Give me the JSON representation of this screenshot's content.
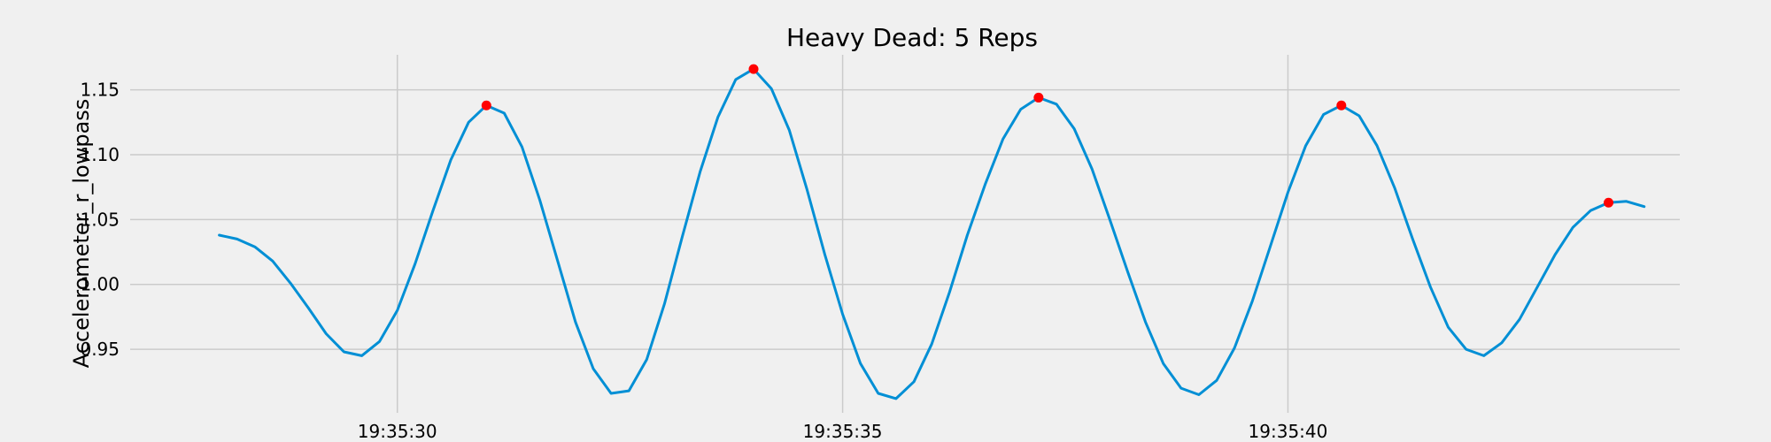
{
  "chart_data": {
    "type": "line",
    "title": "Heavy Dead: 5 Reps",
    "xlabel": "",
    "ylabel": "Accelerometer_r_lowpass",
    "x_unit": "time",
    "xlim": [
      "19:35:27.0",
      "19:35:44.4"
    ],
    "ylim": [
      0.901,
      1.177
    ],
    "grid": true,
    "x_ticks": [
      {
        "t": "19:35:30",
        "label": "19:35:30"
      },
      {
        "t": "19:35:35",
        "label": "19:35:35"
      },
      {
        "t": "19:35:40",
        "label": "19:35:40"
      }
    ],
    "y_ticks": [
      0.95,
      1.0,
      1.05,
      1.1,
      1.15
    ],
    "y_tick_labels": [
      "0.95",
      "1.00",
      "1.05",
      "1.10",
      "1.15"
    ],
    "series": [
      {
        "color": "#008fd5",
        "points": [
          [
            "19:35:28.0",
            1.038
          ],
          [
            "19:35:28.2",
            1.035
          ],
          [
            "19:35:28.4",
            1.029
          ],
          [
            "19:35:28.6",
            1.018
          ],
          [
            "19:35:28.8",
            1.001
          ],
          [
            "19:35:29.0",
            0.982
          ],
          [
            "19:35:29.2",
            0.962
          ],
          [
            "19:35:29.4",
            0.948
          ],
          [
            "19:35:29.6",
            0.945
          ],
          [
            "19:35:29.8",
            0.956
          ],
          [
            "19:35:30.0",
            0.98
          ],
          [
            "19:35:30.2",
            1.016
          ],
          [
            "19:35:30.4",
            1.057
          ],
          [
            "19:35:30.6",
            1.096
          ],
          [
            "19:35:30.8",
            1.125
          ],
          [
            "19:35:31.0",
            1.138
          ],
          [
            "19:35:31.2",
            1.132
          ],
          [
            "19:35:31.4",
            1.106
          ],
          [
            "19:35:31.6",
            1.065
          ],
          [
            "19:35:31.8",
            1.018
          ],
          [
            "19:35:32.0",
            0.971
          ],
          [
            "19:35:32.2",
            0.935
          ],
          [
            "19:35:32.4",
            0.916
          ],
          [
            "19:35:32.6",
            0.918
          ],
          [
            "19:35:32.8",
            0.942
          ],
          [
            "19:35:33.0",
            0.985
          ],
          [
            "19:35:33.2",
            1.037
          ],
          [
            "19:35:33.4",
            1.087
          ],
          [
            "19:35:33.6",
            1.129
          ],
          [
            "19:35:33.8",
            1.158
          ],
          [
            "19:35:34.0",
            1.166
          ],
          [
            "19:35:34.2",
            1.151
          ],
          [
            "19:35:34.4",
            1.119
          ],
          [
            "19:35:34.6",
            1.073
          ],
          [
            "19:35:34.8",
            1.023
          ],
          [
            "19:35:35.0",
            0.977
          ],
          [
            "19:35:35.2",
            0.939
          ],
          [
            "19:35:35.4",
            0.916
          ],
          [
            "19:35:35.6",
            0.912
          ],
          [
            "19:35:35.8",
            0.925
          ],
          [
            "19:35:36.0",
            0.954
          ],
          [
            "19:35:36.2",
            0.994
          ],
          [
            "19:35:36.4",
            1.038
          ],
          [
            "19:35:36.6",
            1.077
          ],
          [
            "19:35:36.8",
            1.112
          ],
          [
            "19:35:37.0",
            1.135
          ],
          [
            "19:35:37.2",
            1.144
          ],
          [
            "19:35:37.4",
            1.139
          ],
          [
            "19:35:37.6",
            1.12
          ],
          [
            "19:35:37.8",
            1.089
          ],
          [
            "19:35:38.0",
            1.05
          ],
          [
            "19:35:38.2",
            1.01
          ],
          [
            "19:35:38.4",
            0.971
          ],
          [
            "19:35:38.6",
            0.939
          ],
          [
            "19:35:38.8",
            0.92
          ],
          [
            "19:35:39.0",
            0.915
          ],
          [
            "19:35:39.2",
            0.926
          ],
          [
            "19:35:39.4",
            0.951
          ],
          [
            "19:35:39.6",
            0.987
          ],
          [
            "19:35:39.8",
            1.029
          ],
          [
            "19:35:40.0",
            1.071
          ],
          [
            "19:35:40.2",
            1.107
          ],
          [
            "19:35:40.4",
            1.131
          ],
          [
            "19:35:40.6",
            1.138
          ],
          [
            "19:35:40.8",
            1.13
          ],
          [
            "19:35:41.0",
            1.107
          ],
          [
            "19:35:41.2",
            1.074
          ],
          [
            "19:35:41.4",
            1.035
          ],
          [
            "19:35:41.6",
            0.998
          ],
          [
            "19:35:41.8",
            0.967
          ],
          [
            "19:35:42.0",
            0.95
          ],
          [
            "19:35:42.2",
            0.945
          ],
          [
            "19:35:42.4",
            0.955
          ],
          [
            "19:35:42.6",
            0.973
          ],
          [
            "19:35:42.8",
            0.998
          ],
          [
            "19:35:43.0",
            1.023
          ],
          [
            "19:35:43.2",
            1.044
          ],
          [
            "19:35:43.4",
            1.057
          ],
          [
            "19:35:43.6",
            1.063
          ],
          [
            "19:35:43.8",
            1.064
          ],
          [
            "19:35:44.0",
            1.06
          ]
        ]
      }
    ],
    "peaks": {
      "color": "#ff0000",
      "points": [
        [
          "19:35:31.0",
          1.138
        ],
        [
          "19:35:34.0",
          1.166
        ],
        [
          "19:35:37.2",
          1.144
        ],
        [
          "19:35:40.6",
          1.138
        ],
        [
          "19:35:43.6",
          1.063
        ]
      ]
    }
  }
}
